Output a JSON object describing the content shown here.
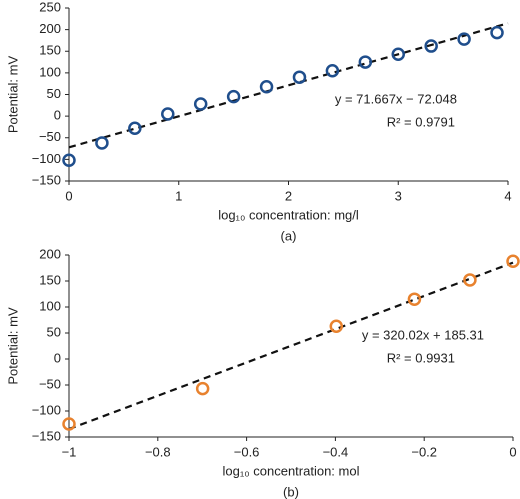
{
  "chart_data": [
    {
      "type": "scatter",
      "caption": "(a)",
      "x_label": "log₁₀ concentration: mg/l",
      "y_label": "Potential: mV",
      "series": [
        {
          "name": "data",
          "color": "#1f4e8c",
          "x": [
            0,
            0.3,
            0.6,
            0.9,
            1.2,
            1.5,
            1.8,
            2.1,
            2.4,
            2.7,
            3.0,
            3.3,
            3.6,
            3.9
          ],
          "values": [
            -102,
            -62,
            -28,
            5,
            28,
            45,
            68,
            90,
            105,
            125,
            143,
            162,
            178,
            193
          ]
        }
      ],
      "trendline": {
        "slope": 71.667,
        "intercept": -72.048,
        "equation": "y = 71.667x − 72.048",
        "r2": "R² = 0.9791"
      },
      "xlim": [
        0,
        4
      ],
      "xticks": [
        0,
        1,
        2,
        3,
        4
      ],
      "ylim": [
        -150,
        250
      ],
      "yticks": [
        {
          "value": -150,
          "label": "−150"
        },
        {
          "value": -100,
          "label": "−100"
        },
        {
          "value": -50,
          "label": "−50"
        },
        0,
        50,
        100,
        150,
        200,
        250
      ]
    },
    {
      "type": "scatter",
      "caption": "(b)",
      "x_label": "log₁₀ concentration: mol",
      "y_label": "Potential: mV",
      "series": [
        {
          "name": "data",
          "color": "#e8822e",
          "x": [
            -1,
            -0.699,
            -0.398,
            -0.222,
            -0.097,
            0
          ],
          "values": [
            -125,
            -57,
            63,
            115,
            152,
            188
          ]
        }
      ],
      "trendline": {
        "slope": 320.02,
        "intercept": 185.31,
        "equation": "y = 320.02x + 185.31",
        "r2": "R² = 0.9931"
      },
      "xlim": [
        -1,
        0
      ],
      "xticks": [
        {
          "value": -1,
          "label": "−1"
        },
        {
          "value": -0.8,
          "label": "−0.8"
        },
        {
          "value": -0.6,
          "label": "−0.6"
        },
        {
          "value": -0.4,
          "label": "−0.4"
        },
        {
          "value": -0.2,
          "label": "−0.2"
        },
        0
      ],
      "ylim": [
        -150,
        200
      ],
      "yticks": [
        {
          "value": -150,
          "label": "−150"
        },
        {
          "value": -100,
          "label": "−100"
        },
        {
          "value": -50,
          "label": "−50"
        },
        0,
        50,
        100,
        150,
        200
      ]
    }
  ]
}
